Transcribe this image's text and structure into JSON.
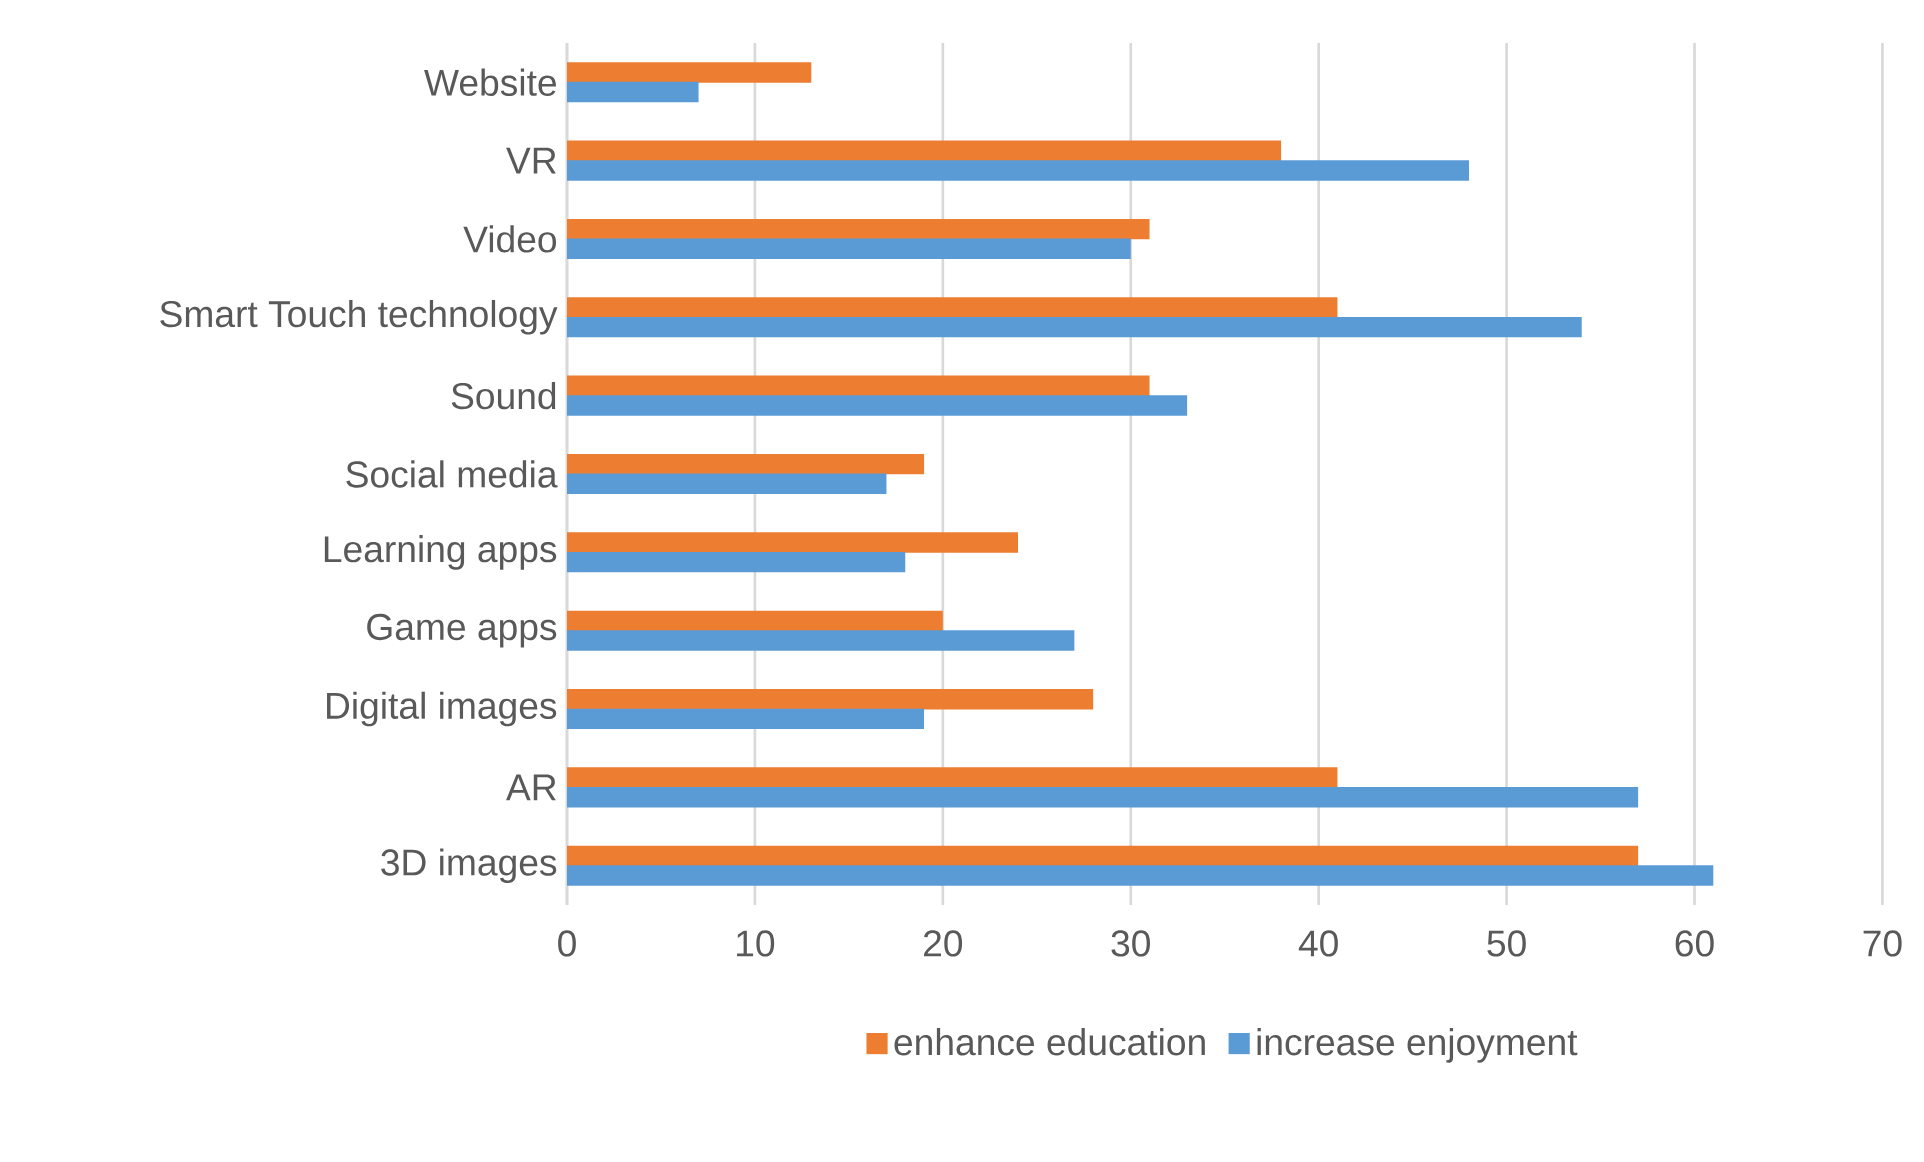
{
  "chart_data": {
    "type": "bar",
    "orientation": "horizontal",
    "categories": [
      "Website",
      "VR",
      "Video",
      "Smart Touch technology",
      "Sound",
      "Social media",
      "Learning apps",
      "Game apps",
      "Digital images",
      "AR",
      "3D images"
    ],
    "series": [
      {
        "name": "enhance education",
        "color": "#ed7d31",
        "values": [
          13,
          38,
          31,
          41,
          31,
          19,
          24,
          20,
          28,
          41,
          57
        ]
      },
      {
        "name": "increase enjoyment",
        "color": "#5b9bd5",
        "values": [
          7,
          48,
          30,
          54,
          33,
          17,
          18,
          27,
          19,
          57,
          61
        ]
      }
    ],
    "xlim": [
      0,
      70
    ],
    "xticks": [
      0,
      10,
      20,
      30,
      40,
      50,
      60,
      70
    ],
    "grid": "x",
    "legend": "bottom"
  }
}
